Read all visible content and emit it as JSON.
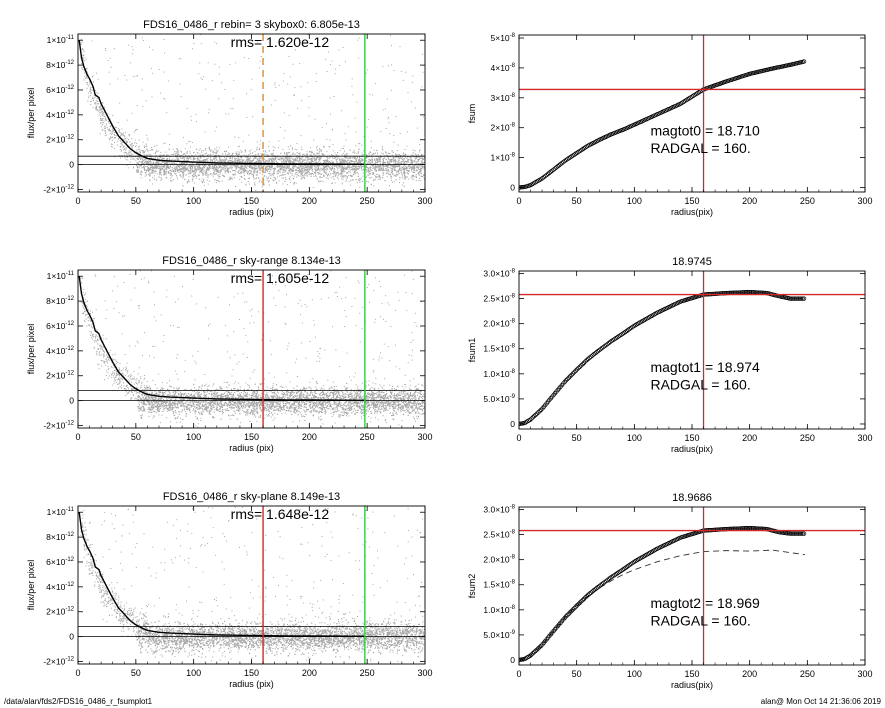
{
  "footer": {
    "path": "/data/alan/fds2/FDS16_0486_r_fsumplot1",
    "user_time": "alan@  Mon Oct 14 21:36:06 2019"
  },
  "colors": {
    "scatter": "#a6a6a6",
    "profile": "#000000",
    "sky_line": "#000000",
    "orange_dash": "#e08a2c",
    "red": "#d62728",
    "green": "#2ecc40"
  },
  "chart_data": [
    {
      "id": "left1",
      "type": "scatter",
      "title": "FDS16_0486_r rebin= 3    skybox0:  6.805e-13",
      "annotation": "rms= 1.620e-12",
      "xlabel": "radius (pix)",
      "ylabel": "flux/per pixel",
      "xlim": [
        0,
        300
      ],
      "ylim": [
        -2.2e-12,
        1.05e-11
      ],
      "xticks": [
        0,
        50,
        100,
        150,
        200,
        250,
        300
      ],
      "yticks": [
        {
          "v": -2e-12,
          "m": "-2",
          "e": "-12"
        },
        {
          "v": 0,
          "m": "0",
          "e": ""
        },
        {
          "v": 2e-12,
          "m": "2",
          "e": "-12"
        },
        {
          "v": 4e-12,
          "m": "4",
          "e": "-12"
        },
        {
          "v": 6e-12,
          "m": "6",
          "e": "-12"
        },
        {
          "v": 8e-12,
          "m": "8",
          "e": "-12"
        },
        {
          "v": 1e-11,
          "m": "1",
          "e": "-11"
        }
      ],
      "hlines": [
        6.805e-13,
        0
      ],
      "vlines": [
        {
          "x": 160,
          "color": "orange_dash",
          "dashed": true
        },
        {
          "x": 248,
          "color": "green",
          "dashed": false
        }
      ],
      "profile": [
        [
          1,
          1e-11
        ],
        [
          3,
          8.6e-12
        ],
        [
          5,
          7.9e-12
        ],
        [
          8,
          7.2e-12
        ],
        [
          10,
          6.9e-12
        ],
        [
          13,
          6.3e-12
        ],
        [
          15,
          5.6e-12
        ],
        [
          18,
          5.4e-12
        ],
        [
          20,
          4.9e-12
        ],
        [
          25,
          4e-12
        ],
        [
          30,
          3.1e-12
        ],
        [
          35,
          2.3e-12
        ],
        [
          40,
          1.8e-12
        ],
        [
          45,
          1.3e-12
        ],
        [
          50,
          9.5e-13
        ],
        [
          55,
          7e-13
        ],
        [
          60,
          5e-13
        ],
        [
          70,
          3.5e-13
        ],
        [
          80,
          2.8e-13
        ],
        [
          100,
          2e-13
        ],
        [
          120,
          1.4e-13
        ],
        [
          150,
          1e-13
        ],
        [
          180,
          6e-14
        ],
        [
          200,
          5e-14
        ],
        [
          220,
          4e-14
        ],
        [
          248,
          3e-14
        ]
      ],
      "scatter_band": {
        "x": [
          0,
          300
        ],
        "core": [
          -1.2e-12,
          1.6e-12
        ]
      }
    },
    {
      "id": "right1",
      "type": "scatter",
      "title": "",
      "annotations": [
        "magtot0 =  18.710",
        "RADGAL =    160."
      ],
      "xlabel": "radius(pix)",
      "ylabel": "fsum",
      "xlim": [
        0,
        300
      ],
      "ylim": [
        -1.5e-09,
        5.1e-08
      ],
      "xticks": [
        0,
        50,
        100,
        150,
        200,
        250,
        300
      ],
      "yticks": [
        {
          "v": 0,
          "m": "0",
          "e": ""
        },
        {
          "v": 1e-08,
          "m": "1",
          "e": "-8"
        },
        {
          "v": 2e-08,
          "m": "2",
          "e": "-8"
        },
        {
          "v": 3e-08,
          "m": "3",
          "e": "-8"
        },
        {
          "v": 4e-08,
          "m": "4",
          "e": "-8"
        },
        {
          "v": 5e-08,
          "m": "5",
          "e": "-8"
        }
      ],
      "yticks_prefix": "×10",
      "crosshair": {
        "x": 160,
        "y": 3.28e-08
      },
      "curve": [
        [
          0,
          0
        ],
        [
          5,
          2e-10
        ],
        [
          10,
          8e-10
        ],
        [
          20,
          3e-09
        ],
        [
          30,
          6e-09
        ],
        [
          40,
          9e-09
        ],
        [
          50,
          1.15e-08
        ],
        [
          60,
          1.4e-08
        ],
        [
          70,
          1.6e-08
        ],
        [
          80,
          1.78e-08
        ],
        [
          90,
          1.93e-08
        ],
        [
          100,
          2.1e-08
        ],
        [
          120,
          2.45e-08
        ],
        [
          140,
          2.8e-08
        ],
        [
          160,
          3.28e-08
        ],
        [
          180,
          3.55e-08
        ],
        [
          200,
          3.8e-08
        ],
        [
          220,
          3.98e-08
        ],
        [
          235,
          4.1e-08
        ],
        [
          248,
          4.22e-08
        ]
      ]
    },
    {
      "id": "left2",
      "type": "scatter",
      "title": "FDS16_0486_r sky-range  8.134e-13",
      "annotation": "rms= 1.605e-12",
      "xlabel": "radius (pix)",
      "ylabel": "flux/per pixel",
      "xlim": [
        0,
        300
      ],
      "ylim": [
        -2.2e-12,
        1.05e-11
      ],
      "xticks": [
        0,
        50,
        100,
        150,
        200,
        250,
        300
      ],
      "yticks": [
        {
          "v": -2e-12,
          "m": "-2",
          "e": "-12"
        },
        {
          "v": 0,
          "m": "0",
          "e": ""
        },
        {
          "v": 2e-12,
          "m": "2",
          "e": "-12"
        },
        {
          "v": 4e-12,
          "m": "4",
          "e": "-12"
        },
        {
          "v": 6e-12,
          "m": "6",
          "e": "-12"
        },
        {
          "v": 8e-12,
          "m": "8",
          "e": "-12"
        },
        {
          "v": 1e-11,
          "m": "1",
          "e": "-11"
        }
      ],
      "hlines": [
        8.134e-13,
        0
      ],
      "vlines": [
        {
          "x": 160,
          "color": "red",
          "dashed": false
        },
        {
          "x": 248,
          "color": "green",
          "dashed": false
        }
      ],
      "profile": [
        [
          1,
          1e-11
        ],
        [
          3,
          8.6e-12
        ],
        [
          5,
          7.9e-12
        ],
        [
          8,
          7.2e-12
        ],
        [
          10,
          6.9e-12
        ],
        [
          13,
          6.3e-12
        ],
        [
          15,
          5.6e-12
        ],
        [
          18,
          5.4e-12
        ],
        [
          20,
          4.9e-12
        ],
        [
          25,
          4e-12
        ],
        [
          30,
          3.1e-12
        ],
        [
          35,
          2.3e-12
        ],
        [
          40,
          1.8e-12
        ],
        [
          45,
          1.3e-12
        ],
        [
          50,
          9.5e-13
        ],
        [
          55,
          7e-13
        ],
        [
          60,
          5e-13
        ],
        [
          70,
          3.5e-13
        ],
        [
          80,
          2.8e-13
        ],
        [
          100,
          2e-13
        ],
        [
          120,
          1.4e-13
        ],
        [
          150,
          1e-13
        ],
        [
          180,
          6e-14
        ],
        [
          200,
          5e-14
        ],
        [
          220,
          4e-14
        ],
        [
          248,
          3e-14
        ]
      ],
      "scatter_band": {
        "x": [
          0,
          300
        ],
        "core": [
          -1.2e-12,
          1.6e-12
        ]
      }
    },
    {
      "id": "right2",
      "type": "scatter",
      "title": "18.9745",
      "annotations": [
        "magtot1 =  18.974",
        "RADGAL =    160."
      ],
      "xlabel": "radius(pix)",
      "ylabel": "fsum1",
      "xlim": [
        0,
        300
      ],
      "ylim": [
        -1e-09,
        3.05e-08
      ],
      "xticks": [
        0,
        50,
        100,
        150,
        200,
        250,
        300
      ],
      "yticks": [
        {
          "v": 0,
          "m": "0",
          "e": ""
        },
        {
          "v": 5e-09,
          "m": "5.0",
          "e": "-9"
        },
        {
          "v": 1e-08,
          "m": "1.0",
          "e": "-8"
        },
        {
          "v": 1.5e-08,
          "m": "1.5",
          "e": "-8"
        },
        {
          "v": 2e-08,
          "m": "2.0",
          "e": "-8"
        },
        {
          "v": 2.5e-08,
          "m": "2.5",
          "e": "-8"
        },
        {
          "v": 3e-08,
          "m": "3.0",
          "e": "-8"
        }
      ],
      "crosshair": {
        "x": 160,
        "y": 2.58e-08
      },
      "curve": [
        [
          0,
          0
        ],
        [
          5,
          2e-10
        ],
        [
          10,
          9e-10
        ],
        [
          20,
          3e-09
        ],
        [
          30,
          5.8e-09
        ],
        [
          40,
          8.5e-09
        ],
        [
          50,
          1.08e-08
        ],
        [
          60,
          1.3e-08
        ],
        [
          70,
          1.48e-08
        ],
        [
          80,
          1.65e-08
        ],
        [
          90,
          1.8e-08
        ],
        [
          100,
          1.96e-08
        ],
        [
          120,
          2.22e-08
        ],
        [
          140,
          2.44e-08
        ],
        [
          160,
          2.58e-08
        ],
        [
          180,
          2.61e-08
        ],
        [
          200,
          2.63e-08
        ],
        [
          215,
          2.61e-08
        ],
        [
          225,
          2.55e-08
        ],
        [
          235,
          2.5e-08
        ],
        [
          248,
          2.5e-08
        ]
      ]
    },
    {
      "id": "left3",
      "type": "scatter",
      "title": "FDS16_0486_r sky-plane  8.149e-13",
      "annotation": "rms= 1.648e-12",
      "xlabel": "radius (pix)",
      "ylabel": "flux/per pixel",
      "xlim": [
        0,
        300
      ],
      "ylim": [
        -2.2e-12,
        1.05e-11
      ],
      "xticks": [
        0,
        50,
        100,
        150,
        200,
        250,
        300
      ],
      "yticks": [
        {
          "v": -2e-12,
          "m": "-2",
          "e": "-12"
        },
        {
          "v": 0,
          "m": "0",
          "e": ""
        },
        {
          "v": 2e-12,
          "m": "2",
          "e": "-12"
        },
        {
          "v": 4e-12,
          "m": "4",
          "e": "-12"
        },
        {
          "v": 6e-12,
          "m": "6",
          "e": "-12"
        },
        {
          "v": 8e-12,
          "m": "8",
          "e": "-12"
        },
        {
          "v": 1e-11,
          "m": "1",
          "e": "-11"
        }
      ],
      "hlines": [
        8.149e-13,
        0
      ],
      "vlines": [
        {
          "x": 160,
          "color": "red",
          "dashed": false
        },
        {
          "x": 248,
          "color": "green",
          "dashed": false
        }
      ],
      "profile": [
        [
          1,
          1e-11
        ],
        [
          3,
          8.6e-12
        ],
        [
          5,
          7.9e-12
        ],
        [
          8,
          7.2e-12
        ],
        [
          10,
          6.9e-12
        ],
        [
          13,
          6.3e-12
        ],
        [
          15,
          5.6e-12
        ],
        [
          18,
          5.4e-12
        ],
        [
          20,
          4.9e-12
        ],
        [
          25,
          4e-12
        ],
        [
          30,
          3.1e-12
        ],
        [
          35,
          2.3e-12
        ],
        [
          40,
          1.8e-12
        ],
        [
          45,
          1.3e-12
        ],
        [
          50,
          9.5e-13
        ],
        [
          55,
          7e-13
        ],
        [
          60,
          5e-13
        ],
        [
          70,
          3.5e-13
        ],
        [
          80,
          2.8e-13
        ],
        [
          100,
          2e-13
        ],
        [
          120,
          1.4e-13
        ],
        [
          150,
          1e-13
        ],
        [
          180,
          6e-14
        ],
        [
          200,
          5e-14
        ],
        [
          220,
          4e-14
        ],
        [
          248,
          3e-14
        ]
      ],
      "scatter_band": {
        "x": [
          0,
          300
        ],
        "core": [
          -1.2e-12,
          1.6e-12
        ]
      }
    },
    {
      "id": "right3",
      "type": "scatter",
      "title": "18.9686",
      "annotations": [
        "magtot2 =  18.969",
        "RADGAL =    160."
      ],
      "xlabel": "radius(pix)",
      "ylabel": "fsum2",
      "xlim": [
        0,
        300
      ],
      "ylim": [
        -1e-09,
        3.05e-08
      ],
      "xticks": [
        0,
        50,
        100,
        150,
        200,
        250,
        300
      ],
      "yticks": [
        {
          "v": 0,
          "m": "0",
          "e": ""
        },
        {
          "v": 5e-09,
          "m": "5.0",
          "e": "-9"
        },
        {
          "v": 1e-08,
          "m": "1.0",
          "e": "-8"
        },
        {
          "v": 1.5e-08,
          "m": "1.5",
          "e": "-8"
        },
        {
          "v": 2e-08,
          "m": "2.0",
          "e": "-8"
        },
        {
          "v": 2.5e-08,
          "m": "2.5",
          "e": "-8"
        },
        {
          "v": 3e-08,
          "m": "3.0",
          "e": "-8"
        }
      ],
      "crosshair": {
        "x": 160,
        "y": 2.58e-08
      },
      "curve": [
        [
          0,
          0
        ],
        [
          5,
          2e-10
        ],
        [
          10,
          9e-10
        ],
        [
          20,
          3e-09
        ],
        [
          30,
          5.8e-09
        ],
        [
          40,
          8.5e-09
        ],
        [
          50,
          1.08e-08
        ],
        [
          60,
          1.3e-08
        ],
        [
          70,
          1.48e-08
        ],
        [
          80,
          1.65e-08
        ],
        [
          90,
          1.8e-08
        ],
        [
          100,
          1.96e-08
        ],
        [
          120,
          2.22e-08
        ],
        [
          140,
          2.44e-08
        ],
        [
          160,
          2.58e-08
        ],
        [
          180,
          2.61e-08
        ],
        [
          200,
          2.63e-08
        ],
        [
          215,
          2.61e-08
        ],
        [
          225,
          2.55e-08
        ],
        [
          235,
          2.52e-08
        ],
        [
          248,
          2.52e-08
        ]
      ],
      "dashed_curve": [
        [
          0,
          0
        ],
        [
          10,
          9e-10
        ],
        [
          20,
          3e-09
        ],
        [
          30,
          5.8e-09
        ],
        [
          40,
          8.5e-09
        ],
        [
          50,
          1.08e-08
        ],
        [
          60,
          1.28e-08
        ],
        [
          70,
          1.44e-08
        ],
        [
          80,
          1.58e-08
        ],
        [
          90,
          1.7e-08
        ],
        [
          100,
          1.8e-08
        ],
        [
          120,
          1.96e-08
        ],
        [
          140,
          2.08e-08
        ],
        [
          160,
          2.16e-08
        ],
        [
          180,
          2.18e-08
        ],
        [
          200,
          2.17e-08
        ],
        [
          220,
          2.19e-08
        ],
        [
          235,
          2.14e-08
        ],
        [
          248,
          2.1e-08
        ]
      ]
    }
  ]
}
